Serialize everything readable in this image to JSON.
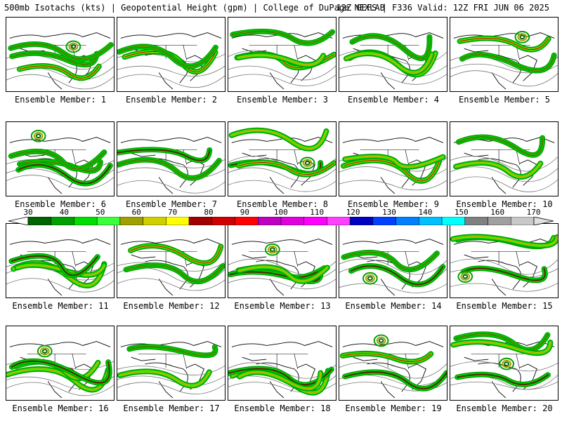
{
  "header": {
    "left": "500mb Isotachs (kts) | Geopotential Height (gpm) | College of DuPage NEXLAB",
    "right": "12Z GEFS | F336 Valid: 12Z FRI JUN 06 2025"
  },
  "colorbar": {
    "labels": [
      "30",
      "40",
      "50",
      "60",
      "70",
      "80",
      "90",
      "100",
      "110",
      "120",
      "130",
      "140",
      "150",
      "160",
      "170"
    ],
    "colors": [
      "#006400",
      "#00a000",
      "#00e000",
      "#3cff3c",
      "#a0a000",
      "#d0d000",
      "#ffff00",
      "#a00000",
      "#d00000",
      "#ff0000",
      "#c000c0",
      "#e000e0",
      "#ff00ff",
      "#ff40ff",
      "#0000c0",
      "#0040ff",
      "#0080ff",
      "#00c0ff",
      "#00ffff",
      "#808080",
      "#a0a0a0",
      "#c8c8c8"
    ]
  },
  "members": [
    {
      "label": "Ensemble Member: 1"
    },
    {
      "label": "Ensemble Member: 2"
    },
    {
      "label": "Ensemble Member: 3"
    },
    {
      "label": "Ensemble Member: 4"
    },
    {
      "label": "Ensemble Member: 5"
    },
    {
      "label": "Ensemble Member: 6"
    },
    {
      "label": "Ensemble Member: 7"
    },
    {
      "label": "Ensemble Member: 8"
    },
    {
      "label": "Ensemble Member: 9"
    },
    {
      "label": "Ensemble Member: 10"
    },
    {
      "label": "Ensemble Member: 11"
    },
    {
      "label": "Ensemble Member: 12"
    },
    {
      "label": "Ensemble Member: 13"
    },
    {
      "label": "Ensemble Member: 14"
    },
    {
      "label": "Ensemble Member: 15"
    },
    {
      "label": "Ensemble Member: 16"
    },
    {
      "label": "Ensemble Member: 17"
    },
    {
      "label": "Ensemble Member: 18"
    },
    {
      "label": "Ensemble Member: 19"
    },
    {
      "label": "Ensemble Member: 20"
    }
  ]
}
